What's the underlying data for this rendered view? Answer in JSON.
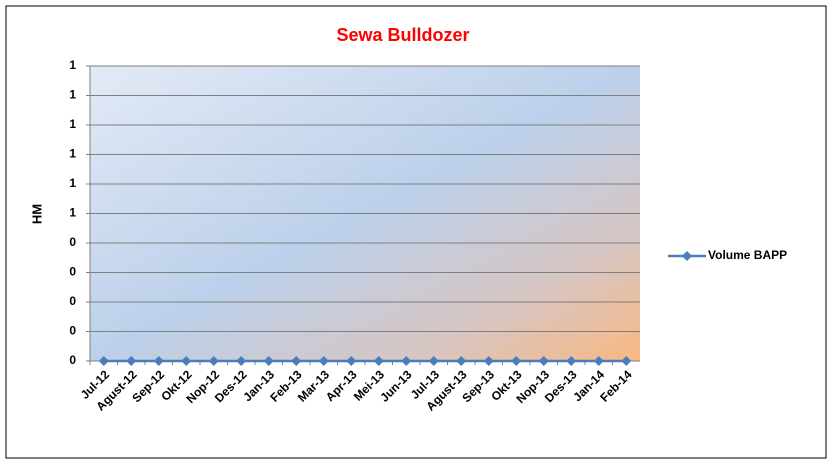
{
  "chart_data": {
    "type": "line",
    "title": "Sewa Bulldozer",
    "y_label": "HM",
    "categories": [
      "Jul-12",
      "Agust-12",
      "Sep-12",
      "Okt-12",
      "Nop-12",
      "Des-12",
      "Jan-13",
      "Feb-13",
      "Mar-13",
      "Apr-13",
      "Mei-13",
      "Jun-13",
      "Jul-13",
      "Agust-13",
      "Sep-13",
      "Okt-13",
      "Nop-13",
      "Des-13",
      "Jan-14",
      "Feb-14"
    ],
    "series": [
      {
        "name": "Volume BAPP",
        "color": "#4a7ebb",
        "values": [
          0,
          0,
          0,
          0,
          0,
          0,
          0,
          0,
          0,
          0,
          0,
          0,
          0,
          0,
          0,
          0,
          0,
          0,
          0,
          0
        ]
      }
    ],
    "ylim": [
      0,
      1
    ],
    "yticks": [
      0,
      {
        "value": 0.1,
        "label": "0"
      },
      {
        "value": 0.2,
        "label": "0"
      },
      {
        "value": 0.3,
        "label": "0"
      },
      {
        "value": 0.4,
        "label": "0"
      },
      {
        "value": 0.5,
        "label": "1"
      },
      {
        "value": 0.6,
        "label": "1"
      },
      {
        "value": 0.7,
        "label": "1"
      },
      {
        "value": 0.8,
        "label": "1"
      },
      {
        "value": 0.9,
        "label": "1"
      },
      1
    ],
    "grid": true,
    "legend": "right"
  }
}
